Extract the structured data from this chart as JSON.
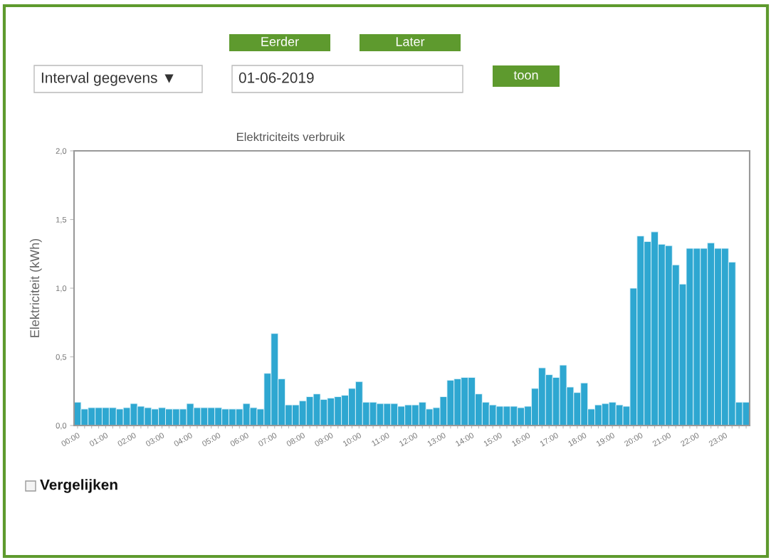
{
  "chart_data": {
    "type": "bar",
    "title": "Elektriciteits verbruik",
    "ylabel": "Elektriciteit (kWh)",
    "categories": [
      "00:00",
      null,
      null,
      null,
      "01:00",
      null,
      null,
      null,
      "02:00",
      null,
      null,
      null,
      "03:00",
      null,
      null,
      null,
      "04:00",
      null,
      null,
      null,
      "05:00",
      null,
      null,
      null,
      "06:00",
      null,
      null,
      null,
      "07:00",
      null,
      null,
      null,
      "08:00",
      null,
      null,
      null,
      "09:00",
      null,
      null,
      null,
      "10:00",
      null,
      null,
      null,
      "11:00",
      null,
      null,
      null,
      "12:00",
      null,
      null,
      null,
      "13:00",
      null,
      null,
      null,
      "14:00",
      null,
      null,
      null,
      "15:00",
      null,
      null,
      null,
      "16:00",
      null,
      null,
      null,
      "17:00",
      null,
      null,
      null,
      "18:00",
      null,
      null,
      null,
      "19:00",
      null,
      null,
      null,
      "20:00",
      null,
      null,
      null,
      "21:00",
      null,
      null,
      null,
      "22:00",
      null,
      null,
      null,
      "23:00",
      null,
      null,
      null
    ],
    "values": [
      0.17,
      0.12,
      0.13,
      0.13,
      0.13,
      0.13,
      0.12,
      0.13,
      0.16,
      0.14,
      0.13,
      0.12,
      0.13,
      0.12,
      0.12,
      0.12,
      0.16,
      0.13,
      0.13,
      0.13,
      0.13,
      0.12,
      0.12,
      0.12,
      0.16,
      0.13,
      0.12,
      0.38,
      0.67,
      0.34,
      0.15,
      0.15,
      0.18,
      0.21,
      0.23,
      0.19,
      0.2,
      0.21,
      0.22,
      0.27,
      0.32,
      0.17,
      0.17,
      0.16,
      0.16,
      0.16,
      0.14,
      0.15,
      0.15,
      0.17,
      0.12,
      0.13,
      0.21,
      0.33,
      0.34,
      0.35,
      0.35,
      0.23,
      0.17,
      0.15,
      0.14,
      0.14,
      0.14,
      0.13,
      0.14,
      0.27,
      0.42,
      0.37,
      0.35,
      0.44,
      0.28,
      0.24,
      0.31,
      0.12,
      0.15,
      0.16,
      0.17,
      0.15,
      0.14,
      1.0,
      1.38,
      1.34,
      1.41,
      1.32,
      1.31,
      1.17,
      1.03,
      1.29,
      1.29,
      1.29,
      1.33,
      1.29,
      1.29,
      1.19,
      0.17,
      0.17
    ],
    "color": "#2ea7d1",
    "ylim": [
      0,
      2
    ],
    "yticks": [
      {
        "value": 0,
        "label": "0,0"
      },
      {
        "value": 0.5,
        "label": "0,5"
      },
      {
        "value": 1,
        "label": "1,0"
      },
      {
        "value": 1.5,
        "label": "1,5"
      },
      {
        "value": 2,
        "label": "2,0"
      }
    ],
    "annotations": [
      "Eerder",
      "Later",
      "Interval gegevens ▼",
      "01-06-2019",
      "toon",
      "Vergelijken"
    ]
  }
}
